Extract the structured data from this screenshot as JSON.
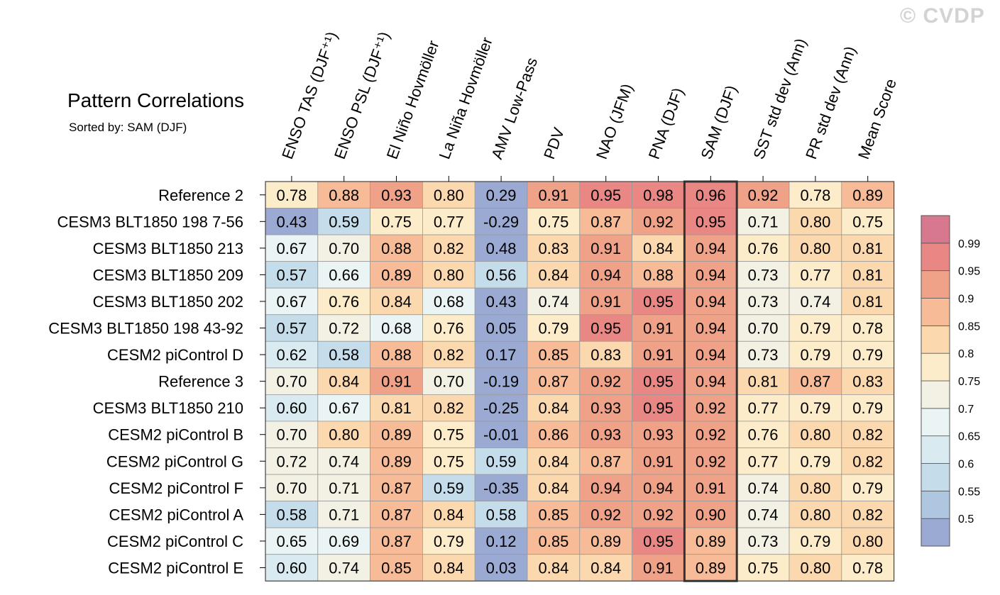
{
  "watermark": "© CVDP",
  "chart_data": {
    "type": "heatmap",
    "title": "Pattern Correlations",
    "subtitle": "Sorted by: SAM (DJF)",
    "columns": [
      "ENSO TAS (DJF⁺¹)",
      "ENSO PSL (DJF⁺¹)",
      "El Niño Hovmöller",
      "La Niña Hovmöller",
      "AMV Low-Pass",
      "PDV",
      "NAO (JFM)",
      "PNA (DJF)",
      "SAM (DJF)",
      "SST std dev (Ann)",
      "PR std dev (Ann)",
      "Mean Score"
    ],
    "highlighted_column": "SAM (DJF)",
    "rows": [
      "Reference 2",
      "CESM3 BLT1850 198 7-56",
      "CESM3 BLT1850 213",
      "CESM3 BLT1850 209",
      "CESM3 BLT1850 202",
      "CESM3 BLT1850 198 43-92",
      "CESM2 piControl D",
      "Reference 3",
      "CESM3 BLT1850 210",
      "CESM2 piControl B",
      "CESM2 piControl G",
      "CESM2 piControl F",
      "CESM2 piControl A",
      "CESM2 piControl C",
      "CESM2 piControl E"
    ],
    "values": [
      [
        "0.78",
        "0.88",
        "0.93",
        "0.80",
        "0.29",
        "0.91",
        "0.95",
        "0.98",
        "0.96",
        "0.92",
        "0.78",
        "0.89"
      ],
      [
        "0.43",
        "0.59",
        "0.75",
        "0.77",
        "-0.29",
        "0.75",
        "0.87",
        "0.92",
        "0.95",
        "0.71",
        "0.80",
        "0.75"
      ],
      [
        "0.67",
        "0.70",
        "0.88",
        "0.82",
        "0.48",
        "0.83",
        "0.91",
        "0.84",
        "0.94",
        "0.76",
        "0.80",
        "0.81"
      ],
      [
        "0.57",
        "0.66",
        "0.89",
        "0.80",
        "0.56",
        "0.84",
        "0.94",
        "0.88",
        "0.94",
        "0.73",
        "0.77",
        "0.81"
      ],
      [
        "0.67",
        "0.76",
        "0.84",
        "0.68",
        "0.43",
        "0.74",
        "0.91",
        "0.95",
        "0.94",
        "0.73",
        "0.74",
        "0.81"
      ],
      [
        "0.57",
        "0.72",
        "0.68",
        "0.76",
        "0.05",
        "0.79",
        "0.95",
        "0.91",
        "0.94",
        "0.70",
        "0.79",
        "0.78"
      ],
      [
        "0.62",
        "0.58",
        "0.88",
        "0.82",
        "0.17",
        "0.85",
        "0.83",
        "0.91",
        "0.94",
        "0.73",
        "0.79",
        "0.79"
      ],
      [
        "0.70",
        "0.84",
        "0.91",
        "0.70",
        "-0.19",
        "0.87",
        "0.92",
        "0.95",
        "0.94",
        "0.81",
        "0.87",
        "0.83"
      ],
      [
        "0.60",
        "0.67",
        "0.81",
        "0.82",
        "-0.25",
        "0.84",
        "0.93",
        "0.95",
        "0.92",
        "0.77",
        "0.79",
        "0.79"
      ],
      [
        "0.70",
        "0.80",
        "0.89",
        "0.75",
        "-0.01",
        "0.86",
        "0.93",
        "0.93",
        "0.92",
        "0.76",
        "0.80",
        "0.82"
      ],
      [
        "0.72",
        "0.74",
        "0.89",
        "0.75",
        "0.59",
        "0.84",
        "0.87",
        "0.91",
        "0.92",
        "0.77",
        "0.79",
        "0.82"
      ],
      [
        "0.70",
        "0.71",
        "0.87",
        "0.59",
        "-0.35",
        "0.84",
        "0.94",
        "0.94",
        "0.91",
        "0.74",
        "0.80",
        "0.79"
      ],
      [
        "0.58",
        "0.71",
        "0.87",
        "0.84",
        "0.58",
        "0.85",
        "0.92",
        "0.92",
        "0.90",
        "0.74",
        "0.80",
        "0.82"
      ],
      [
        "0.65",
        "0.69",
        "0.87",
        "0.79",
        "0.12",
        "0.85",
        "0.89",
        "0.95",
        "0.89",
        "0.73",
        "0.79",
        "0.80"
      ],
      [
        "0.60",
        "0.74",
        "0.85",
        "0.84",
        "0.03",
        "0.84",
        "0.84",
        "0.91",
        "0.89",
        "0.75",
        "0.80",
        "0.78"
      ]
    ],
    "colorbar": {
      "levels": [
        "0.99",
        "0.95",
        "0.9",
        "0.85",
        "0.8",
        "0.75",
        "0.7",
        "0.65",
        "0.6",
        "0.55",
        "0.5"
      ],
      "thresholds": [
        0.5,
        0.55,
        0.6,
        0.65,
        0.7,
        0.75,
        0.8,
        0.85,
        0.9,
        0.95,
        0.99
      ],
      "colors": [
        "#9aaad3",
        "#afc6e0",
        "#c5dcea",
        "#d9ebf1",
        "#ebf4f4",
        "#f3f1e4",
        "#fcecc9",
        "#fbd8ad",
        "#f7bc97",
        "#efa288",
        "#e88784",
        "#d8788f"
      ]
    }
  }
}
